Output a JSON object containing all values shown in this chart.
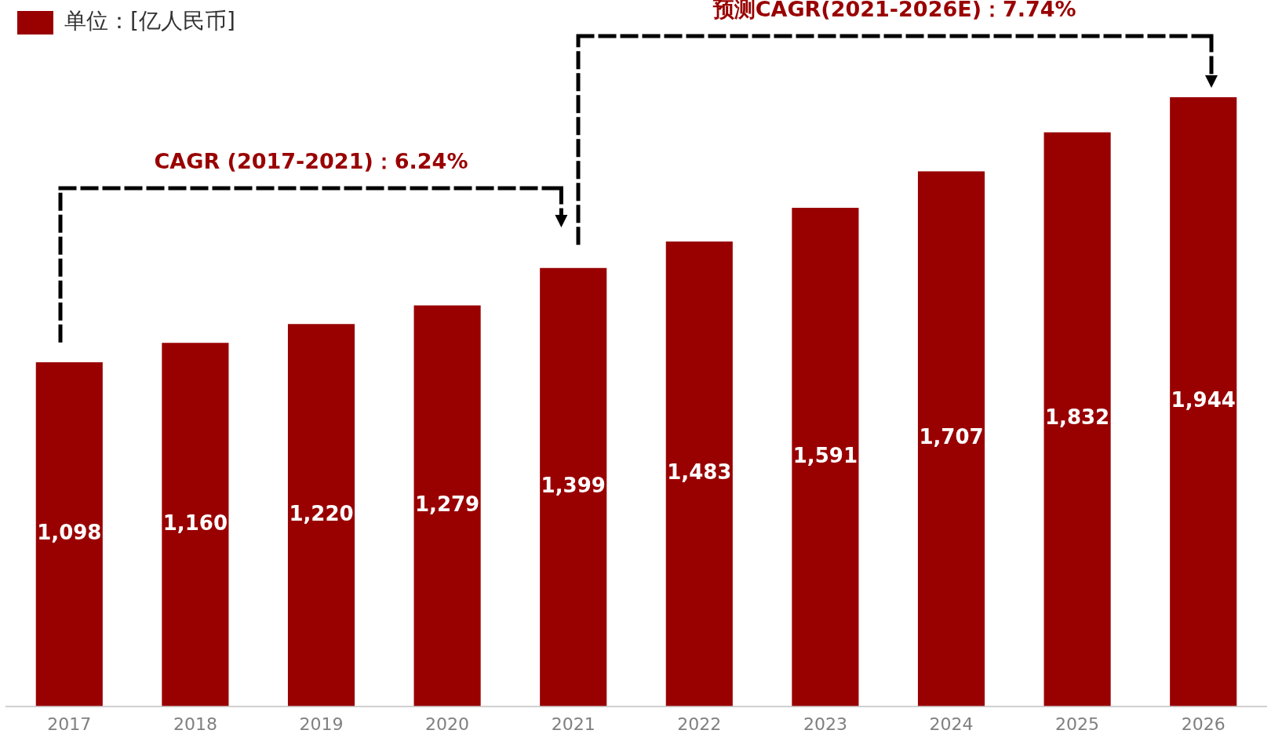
{
  "chart_data": {
    "type": "bar",
    "categories": [
      "2017",
      "2018",
      "2019",
      "2020",
      "2021",
      "2022",
      "2023",
      "2024",
      "2025",
      "2026"
    ],
    "series": [
      {
        "name": "单位：[亿人民币]",
        "color": "#990000",
        "values": [
          1098,
          1160,
          1220,
          1279,
          1399,
          1483,
          1591,
          1707,
          1832,
          1944
        ],
        "value_labels": [
          "1,098",
          "1,160",
          "1,220",
          "1,279",
          "1,399",
          "1,483",
          "1,591",
          "1,707",
          "1,832",
          "1,944"
        ]
      }
    ],
    "legend": "top left",
    "grid": false,
    "annotations": [
      "CAGR (2017-2021)：6.24%",
      "预测CAGR(2021-2026E)：7.74%"
    ]
  }
}
